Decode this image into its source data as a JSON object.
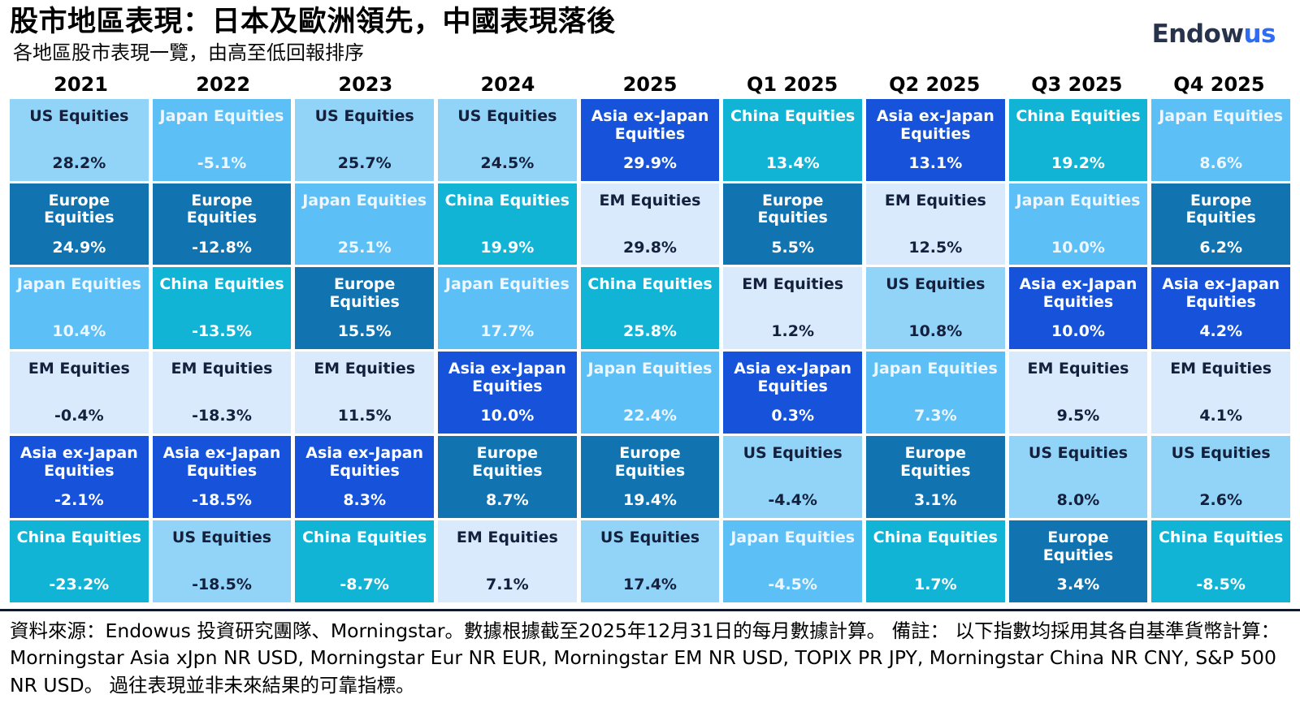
{
  "header": {
    "title": "股市地區表現：日本及歐洲領先，中國表現落後",
    "subtitle": "各地區股市表現一覽，由高至低回報排序"
  },
  "logo": {
    "dark": "Endow",
    "blue": "us"
  },
  "palette": {
    "us": {
      "bg": "#92d3f8",
      "text": "#14203c"
    },
    "europe": {
      "bg": "#1173b0",
      "text": "#ffffff"
    },
    "japan": {
      "bg": "#5cc0f6",
      "text": "#eef6ff"
    },
    "em": {
      "bg": "#d8eafc",
      "text": "#14203c"
    },
    "asia": {
      "bg": "#1653da",
      "text": "#ffffff"
    },
    "china": {
      "bg": "#12b4d6",
      "text": "#ffffff"
    }
  },
  "columns": [
    {
      "label": "2021",
      "cells": [
        {
          "key": "us",
          "region": "US Equities",
          "value": "28.2%"
        },
        {
          "key": "europe",
          "region": "Europe Equities",
          "value": "24.9%"
        },
        {
          "key": "japan",
          "region": "Japan Equities",
          "value": "10.4%"
        },
        {
          "key": "em",
          "region": "EM Equities",
          "value": "-0.4%"
        },
        {
          "key": "asia",
          "region": "Asia ex-Japan Equities",
          "value": "-2.1%"
        },
        {
          "key": "china",
          "region": "China Equities",
          "value": "-23.2%"
        }
      ]
    },
    {
      "label": "2022",
      "cells": [
        {
          "key": "japan",
          "region": "Japan Equities",
          "value": "-5.1%"
        },
        {
          "key": "europe",
          "region": "Europe Equities",
          "value": "-12.8%"
        },
        {
          "key": "china",
          "region": "China Equities",
          "value": "-13.5%"
        },
        {
          "key": "em",
          "region": "EM Equities",
          "value": "-18.3%"
        },
        {
          "key": "asia",
          "region": "Asia ex-Japan Equities",
          "value": "-18.5%"
        },
        {
          "key": "us",
          "region": "US Equities",
          "value": "-18.5%"
        }
      ]
    },
    {
      "label": "2023",
      "cells": [
        {
          "key": "us",
          "region": "US Equities",
          "value": "25.7%"
        },
        {
          "key": "japan",
          "region": "Japan Equities",
          "value": "25.1%"
        },
        {
          "key": "europe",
          "region": "Europe Equities",
          "value": "15.5%"
        },
        {
          "key": "em",
          "region": "EM Equities",
          "value": "11.5%"
        },
        {
          "key": "asia",
          "region": "Asia ex-Japan Equities",
          "value": "8.3%"
        },
        {
          "key": "china",
          "region": "China Equities",
          "value": "-8.7%"
        }
      ]
    },
    {
      "label": "2024",
      "cells": [
        {
          "key": "us",
          "region": "US Equities",
          "value": "24.5%"
        },
        {
          "key": "china",
          "region": "China Equities",
          "value": "19.9%"
        },
        {
          "key": "japan",
          "region": "Japan Equities",
          "value": "17.7%"
        },
        {
          "key": "asia",
          "region": "Asia ex-Japan Equities",
          "value": "10.0%"
        },
        {
          "key": "europe",
          "region": "Europe Equities",
          "value": "8.7%"
        },
        {
          "key": "em",
          "region": "EM Equities",
          "value": "7.1%"
        }
      ]
    },
    {
      "label": "2025",
      "cells": [
        {
          "key": "asia",
          "region": "Asia ex-Japan Equities",
          "value": "29.9%"
        },
        {
          "key": "em",
          "region": "EM Equities",
          "value": "29.8%"
        },
        {
          "key": "china",
          "region": "China Equities",
          "value": "25.8%"
        },
        {
          "key": "japan",
          "region": "Japan Equities",
          "value": "22.4%"
        },
        {
          "key": "europe",
          "region": "Europe Equities",
          "value": "19.4%"
        },
        {
          "key": "us",
          "region": "US Equities",
          "value": "17.4%"
        }
      ]
    },
    {
      "label": "Q1 2025",
      "cells": [
        {
          "key": "china",
          "region": "China Equities",
          "value": "13.4%"
        },
        {
          "key": "europe",
          "region": "Europe Equities",
          "value": "5.5%"
        },
        {
          "key": "em",
          "region": "EM Equities",
          "value": "1.2%"
        },
        {
          "key": "asia",
          "region": "Asia ex-Japan Equities",
          "value": "0.3%"
        },
        {
          "key": "us",
          "region": "US Equities",
          "value": "-4.4%"
        },
        {
          "key": "japan",
          "region": "Japan Equities",
          "value": "-4.5%"
        }
      ]
    },
    {
      "label": "Q2 2025",
      "cells": [
        {
          "key": "asia",
          "region": "Asia ex-Japan Equities",
          "value": "13.1%"
        },
        {
          "key": "em",
          "region": "EM Equities",
          "value": "12.5%"
        },
        {
          "key": "us",
          "region": "US Equities",
          "value": "10.8%"
        },
        {
          "key": "japan",
          "region": "Japan Equities",
          "value": "7.3%"
        },
        {
          "key": "europe",
          "region": "Europe Equities",
          "value": "3.1%"
        },
        {
          "key": "china",
          "region": "China Equities",
          "value": "1.7%"
        }
      ]
    },
    {
      "label": "Q3 2025",
      "cells": [
        {
          "key": "china",
          "region": "China Equities",
          "value": "19.2%"
        },
        {
          "key": "japan",
          "region": "Japan Equities",
          "value": "10.0%"
        },
        {
          "key": "asia",
          "region": "Asia ex-Japan Equities",
          "value": "10.0%"
        },
        {
          "key": "em",
          "region": "EM Equities",
          "value": "9.5%"
        },
        {
          "key": "us",
          "region": "US Equities",
          "value": "8.0%"
        },
        {
          "key": "europe",
          "region": "Europe Equities",
          "value": "3.4%"
        }
      ]
    },
    {
      "label": "Q4 2025",
      "cells": [
        {
          "key": "japan",
          "region": "Japan Equities",
          "value": "8.6%"
        },
        {
          "key": "europe",
          "region": "Europe Equities",
          "value": "6.2%"
        },
        {
          "key": "asia",
          "region": "Asia ex-Japan Equities",
          "value": "4.2%"
        },
        {
          "key": "em",
          "region": "EM Equities",
          "value": "4.1%"
        },
        {
          "key": "us",
          "region": "US Equities",
          "value": "2.6%"
        },
        {
          "key": "china",
          "region": "China Equities",
          "value": "-8.5%"
        }
      ]
    }
  ],
  "footer": {
    "text": "資料來源：Endowus 投資研究團隊、Morningstar。數據根據截至2025年12月31日的每月數據計算。 備註： 以下指數均採用其各自基準貨幣計算：Morningstar Asia xJpn NR USD, Morningstar Eur NR EUR, Morningstar EM NR USD, TOPIX PR JPY, Morningstar China NR CNY, S&P 500 NR USD。 過往表現並非未來結果的可靠指標。"
  },
  "chart_data": {
    "type": "table",
    "title": "股市地區表現：日本及歐洲領先，中國表現落後",
    "subtitle": "各地區股市表現一覽，由高至低回報排序",
    "columns": [
      "2021",
      "2022",
      "2023",
      "2024",
      "2025",
      "Q1 2025",
      "Q2 2025",
      "Q3 2025",
      "Q4 2025"
    ],
    "unit": "% return",
    "layout": "quilt — cells ranked high to low within each column",
    "series": [
      {
        "name": "US Equities",
        "values": [
          28.2,
          -18.5,
          25.7,
          24.5,
          17.4,
          -4.4,
          10.8,
          8.0,
          2.6
        ]
      },
      {
        "name": "Europe Equities",
        "values": [
          24.9,
          -12.8,
          15.5,
          8.7,
          19.4,
          5.5,
          3.1,
          3.4,
          6.2
        ]
      },
      {
        "name": "Japan Equities",
        "values": [
          10.4,
          -5.1,
          25.1,
          17.7,
          22.4,
          -4.5,
          7.3,
          10.0,
          8.6
        ]
      },
      {
        "name": "EM Equities",
        "values": [
          -0.4,
          -18.3,
          11.5,
          7.1,
          29.8,
          1.2,
          12.5,
          9.5,
          4.1
        ]
      },
      {
        "name": "Asia ex-Japan Equities",
        "values": [
          -2.1,
          -18.5,
          8.3,
          10.0,
          29.9,
          0.3,
          13.1,
          10.0,
          4.2
        ]
      },
      {
        "name": "China Equities",
        "values": [
          -23.2,
          -13.5,
          -8.7,
          19.9,
          25.8,
          13.4,
          1.7,
          19.2,
          -8.5
        ]
      }
    ]
  }
}
